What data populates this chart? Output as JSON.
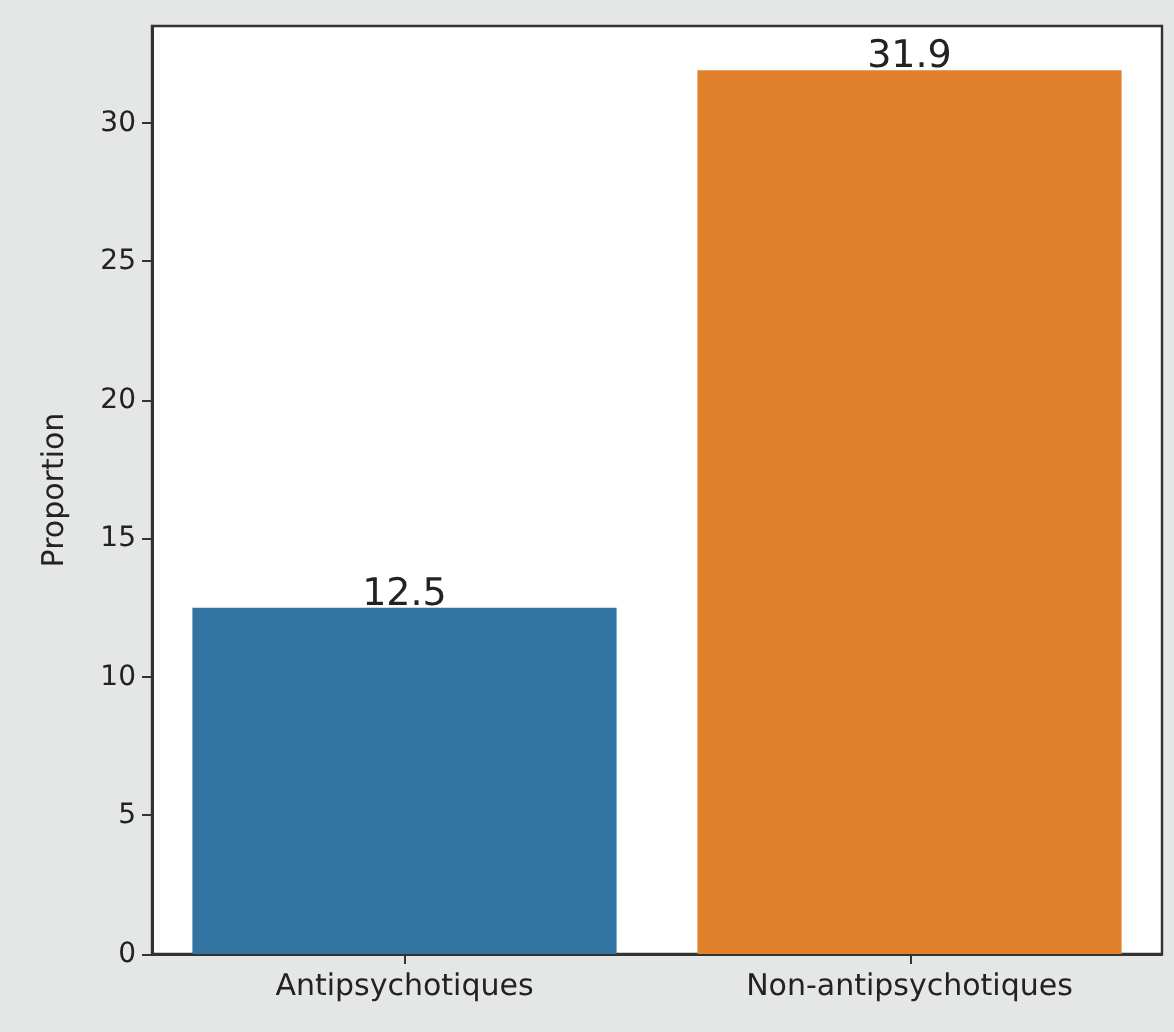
{
  "chart_data": {
    "type": "bar",
    "ylabel": "Proportion",
    "categories": [
      "Antipsychotiques",
      "Non-antipsychotiques"
    ],
    "values": [
      12.5,
      31.9
    ],
    "colors": [
      "#3274a1",
      "#e1812c"
    ],
    "ylim": [
      0,
      33.5
    ],
    "yticks": [
      0,
      5,
      10,
      15,
      20,
      25,
      30
    ],
    "data_labels": true
  }
}
